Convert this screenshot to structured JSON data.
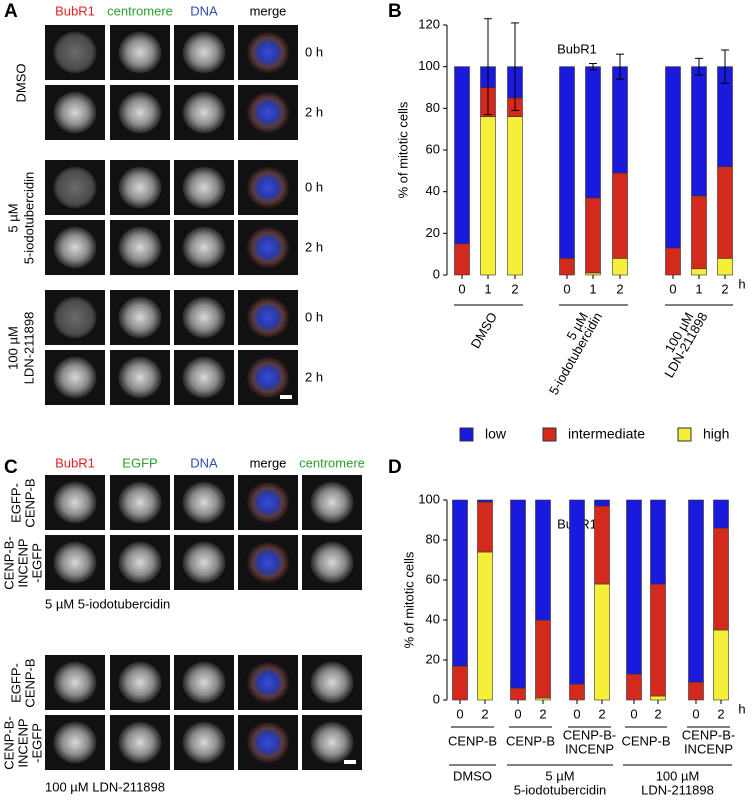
{
  "panel_a": {
    "letter": "A",
    "columns": [
      "BubR1",
      "centromere",
      "DNA",
      "merge"
    ],
    "conditions": [
      [
        "DMSO"
      ],
      [
        "5 µM",
        "5-iodotubercidin"
      ],
      [
        "100 µM",
        "LDN-211898"
      ]
    ],
    "times": [
      "0 h",
      "2 h"
    ]
  },
  "panel_c": {
    "letter": "C",
    "columns": [
      "BubR1",
      "EGFP",
      "DNA",
      "merge",
      "centromere"
    ],
    "rows": [
      [
        "EGFP-",
        "CENP-B"
      ],
      [
        "CENP-B-",
        "INCENP",
        "-EGFP"
      ]
    ],
    "conditions": [
      "5 µM 5-iodotubercidin",
      "100 µM LDN-211898"
    ]
  },
  "chart_data": [
    {
      "type": "bar",
      "stacked": true,
      "panel_letter": "B",
      "title": "BubR1",
      "ylabel": "% of mitotic cells",
      "xunit": "h",
      "categories": [
        "0",
        "1",
        "2",
        "0",
        "1",
        "2",
        "0",
        "1",
        "2"
      ],
      "groups": [
        [
          "DMSO"
        ],
        [
          "5 µM",
          "5-iodotubercidin"
        ],
        [
          "100 µM",
          "LDN-211898"
        ]
      ],
      "series": [
        {
          "name": "high",
          "color": "#f5ef3a",
          "values": [
            0,
            76,
            76,
            0,
            1,
            8,
            0,
            3,
            8
          ]
        },
        {
          "name": "intermediate",
          "color": "#d42a1e",
          "values": [
            15,
            14,
            9,
            8,
            36,
            41,
            13,
            35,
            44
          ]
        },
        {
          "name": "low",
          "color": "#1a1adc",
          "values": [
            85,
            10,
            15,
            92,
            63,
            51,
            87,
            62,
            48
          ],
          "errors": [
            0,
            23,
            21,
            0,
            1.5,
            6,
            0,
            4,
            8
          ]
        }
      ],
      "ylim": [
        0,
        120
      ],
      "yticks": [
        0,
        20,
        40,
        60,
        80,
        100,
        120
      ]
    },
    {
      "type": "bar",
      "stacked": true,
      "panel_letter": "D",
      "title": "BubR1",
      "ylabel": "% of mitotic cells",
      "xunit": "h",
      "categories": [
        "0",
        "2",
        "0",
        "2",
        "0",
        "2",
        "0",
        "2",
        "0",
        "2"
      ],
      "subgroups": [
        [
          "CENP-B"
        ],
        [
          "CENP-B"
        ],
        [
          "CENP-B-",
          "INCENP"
        ],
        [
          "CENP-B"
        ],
        [
          "CENP-B-",
          "INCENP"
        ]
      ],
      "groups": [
        [
          "DMSO"
        ],
        [
          "5 µM",
          "5-iodotubercidin"
        ],
        [
          "100 µM",
          "LDN-211898"
        ]
      ],
      "series": [
        {
          "color": "#f5ef3a",
          "values": [
            0,
            74,
            0,
            1,
            0,
            58,
            0,
            2,
            0,
            35
          ]
        },
        {
          "color": "#d42a1e",
          "values": [
            17,
            25,
            6,
            39,
            8,
            39,
            13,
            56,
            9,
            51
          ]
        },
        {
          "color": "#1a1adc",
          "values": [
            83,
            1,
            94,
            60,
            92,
            3,
            87,
            42,
            91,
            14
          ]
        }
      ],
      "ylim": [
        0,
        100
      ],
      "yticks": [
        0,
        20,
        40,
        60,
        80,
        100
      ]
    }
  ]
}
